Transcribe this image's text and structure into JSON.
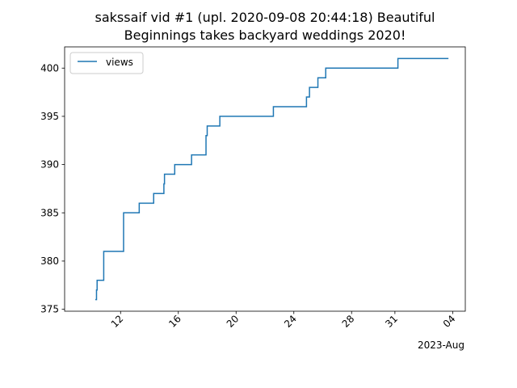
{
  "chart_data": {
    "type": "line",
    "title_lines": [
      "sakssaif vid #1 (upl. 2020-09-08 20:44:18) Beautiful",
      "Beginnings takes backyard weddings 2020!"
    ],
    "xlabel": "",
    "ylabel": "",
    "x_axis_offset_label": "2023-Aug",
    "xlim": [
      "2023-07-08T03:00",
      "2023-08-04T21:00"
    ],
    "ylim": [
      374.8,
      402.2
    ],
    "x_ticks": [
      {
        "date": "2023-07-12",
        "label": "12"
      },
      {
        "date": "2023-07-16",
        "label": "16"
      },
      {
        "date": "2023-07-20",
        "label": "20"
      },
      {
        "date": "2023-07-24",
        "label": "24"
      },
      {
        "date": "2023-07-28",
        "label": "28"
      },
      {
        "date": "2023-07-31",
        "label": "31"
      },
      {
        "date": "2023-08-04",
        "label": "04"
      }
    ],
    "y_ticks": [
      375,
      380,
      385,
      390,
      395,
      400
    ],
    "legend": {
      "placement": "upper-left",
      "entries": [
        "views"
      ]
    },
    "grid": false,
    "series": [
      {
        "name": "views",
        "color": "#1f77b4",
        "step": true,
        "points": [
          [
            "2023-07-10T07:00",
            376
          ],
          [
            "2023-07-10T08:00",
            377
          ],
          [
            "2023-07-10T09:00",
            378
          ],
          [
            "2023-07-10T19:00",
            378
          ],
          [
            "2023-07-10T20:00",
            381
          ],
          [
            "2023-07-11T04:00",
            381
          ],
          [
            "2023-07-12T05:00",
            385
          ],
          [
            "2023-07-13T06:00",
            385
          ],
          [
            "2023-07-13T07:00",
            386
          ],
          [
            "2023-07-14T06:00",
            386
          ],
          [
            "2023-07-14T07:00",
            387
          ],
          [
            "2023-07-14T22:00",
            387
          ],
          [
            "2023-07-15T00:00",
            388
          ],
          [
            "2023-07-15T01:00",
            389
          ],
          [
            "2023-07-15T17:00",
            389
          ],
          [
            "2023-07-15T18:00",
            390
          ],
          [
            "2023-07-16T05:00",
            390
          ],
          [
            "2023-07-16T22:00",
            391
          ],
          [
            "2023-07-17T21:00",
            391
          ],
          [
            "2023-07-17T22:00",
            393
          ],
          [
            "2023-07-18T00:00",
            394
          ],
          [
            "2023-07-18T20:00",
            394
          ],
          [
            "2023-07-18T21:00",
            395
          ],
          [
            "2023-07-22T13:00",
            395
          ],
          [
            "2023-07-22T14:00",
            396
          ],
          [
            "2023-07-24T20:00",
            396
          ],
          [
            "2023-07-24T21:00",
            397
          ],
          [
            "2023-07-25T01:00",
            397
          ],
          [
            "2023-07-25T02:00",
            398
          ],
          [
            "2023-07-25T15:00",
            398
          ],
          [
            "2023-07-25T16:00",
            399
          ],
          [
            "2023-07-26T04:00",
            399
          ],
          [
            "2023-07-26T05:00",
            400
          ],
          [
            "2023-07-31T04:00",
            400
          ],
          [
            "2023-07-31T05:00",
            401
          ],
          [
            "2023-08-03T16:00",
            401
          ]
        ]
      }
    ]
  }
}
